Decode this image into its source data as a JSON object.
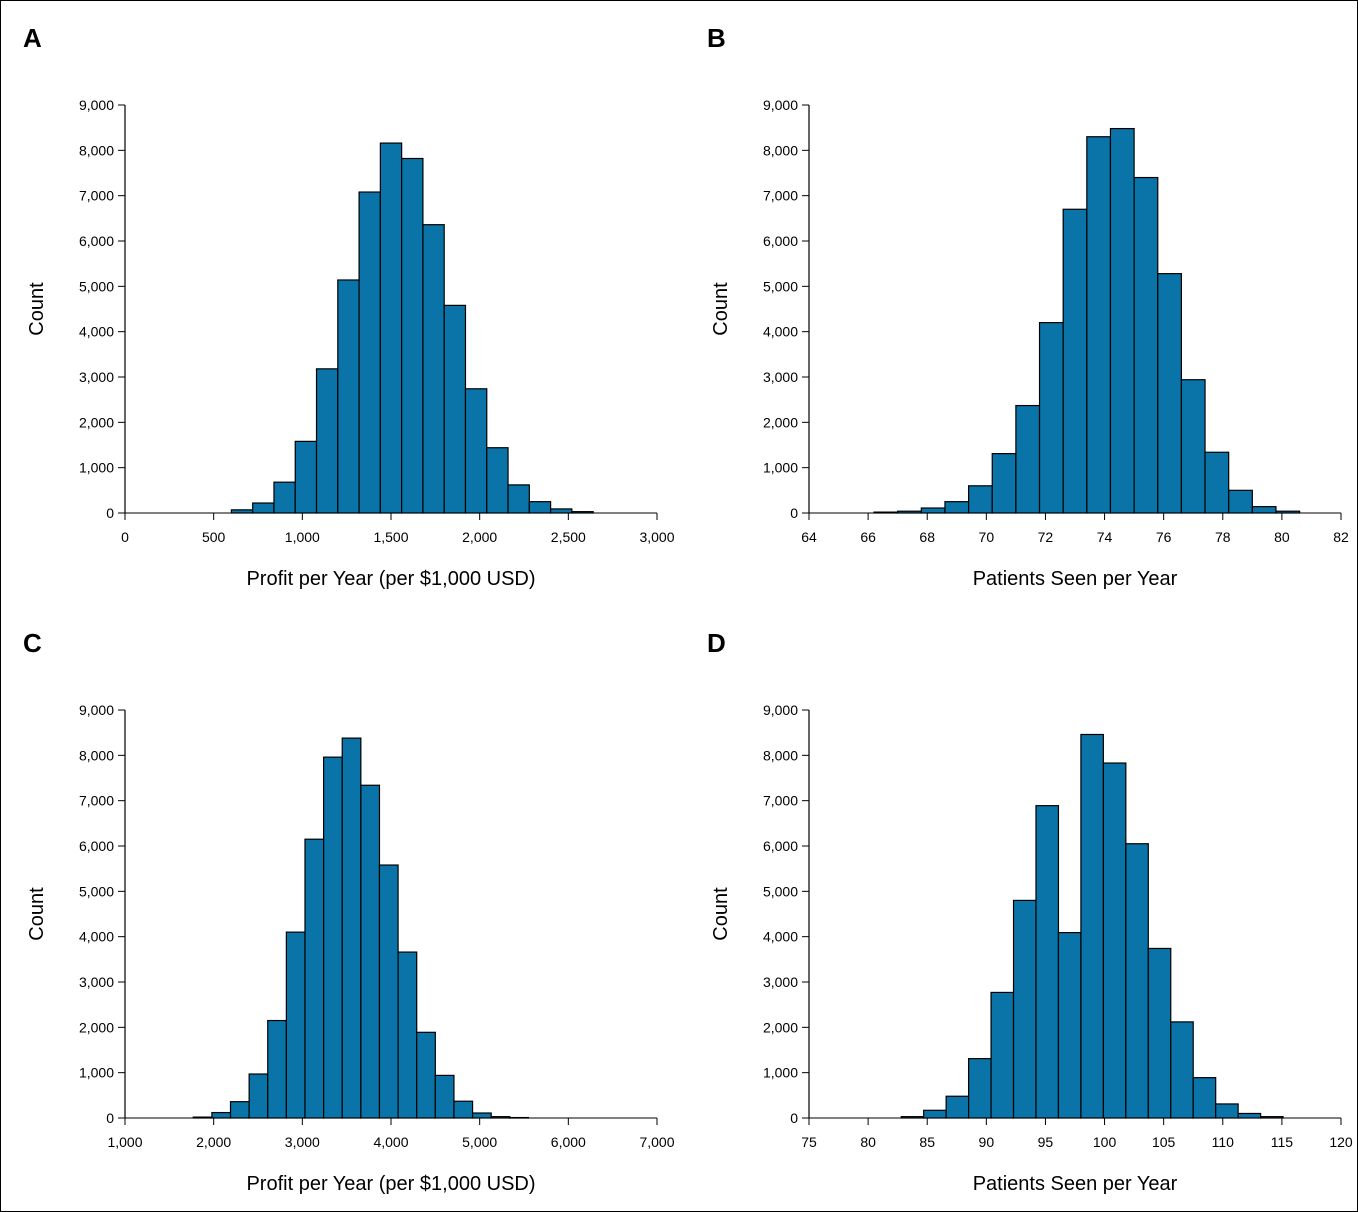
{
  "figure": {
    "panels": [
      "A",
      "B",
      "C",
      "D"
    ]
  },
  "colors": {
    "bar_fill": "#0a74a8",
    "bar_stroke": "#000000",
    "axis": "#000000"
  },
  "chart_data": [
    {
      "panel": "A",
      "type": "bar",
      "title": "",
      "xlabel": "Profit per Year (per $1,000 USD)",
      "ylabel": "Count",
      "xlim": [
        0,
        3000
      ],
      "ylim": [
        0,
        9000
      ],
      "xticks": [
        0,
        500,
        1000,
        1500,
        2000,
        2500,
        3000
      ],
      "xtick_labels": [
        "0",
        "500",
        "1,000",
        "1,500",
        "2,000",
        "2,500",
        "3,000"
      ],
      "yticks": [
        0,
        1000,
        2000,
        3000,
        4000,
        5000,
        6000,
        7000,
        8000,
        9000
      ],
      "ytick_labels": [
        "0",
        "1,000",
        "2,000",
        "3,000",
        "4,000",
        "5,000",
        "6,000",
        "7,000",
        "8,000",
        "9,000"
      ],
      "bin_edges": [
        600,
        720,
        840,
        960,
        1080,
        1200,
        1320,
        1440,
        1560,
        1680,
        1800,
        1920,
        2040,
        2160,
        2280,
        2400,
        2520,
        2640
      ],
      "values": [
        70,
        220,
        680,
        1580,
        3180,
        5140,
        7080,
        8160,
        7820,
        6360,
        4580,
        2740,
        1440,
        620,
        250,
        90,
        30
      ],
      "grid": false
    },
    {
      "panel": "B",
      "type": "bar",
      "title": "",
      "xlabel": "Patients Seen per Year",
      "ylabel": "Count",
      "xlim": [
        64,
        82
      ],
      "ylim": [
        0,
        9000
      ],
      "xticks": [
        64,
        66,
        68,
        70,
        72,
        74,
        76,
        78,
        80,
        82
      ],
      "xtick_labels": [
        "64",
        "66",
        "68",
        "70",
        "72",
        "74",
        "76",
        "78",
        "80",
        "82"
      ],
      "yticks": [
        0,
        1000,
        2000,
        3000,
        4000,
        5000,
        6000,
        7000,
        8000,
        9000
      ],
      "ytick_labels": [
        "0",
        "1,000",
        "2,000",
        "3,000",
        "4,000",
        "5,000",
        "6,000",
        "7,000",
        "8,000",
        "9,000"
      ],
      "bin_edges": [
        66.2,
        67.0,
        67.8,
        68.6,
        69.4,
        70.2,
        71.0,
        71.8,
        72.6,
        73.4,
        74.2,
        75.0,
        75.8,
        76.6,
        77.4,
        78.2,
        79.0,
        79.8,
        80.6
      ],
      "values": [
        20,
        40,
        110,
        250,
        600,
        1310,
        2370,
        4200,
        6700,
        8300,
        8480,
        7400,
        5280,
        2940,
        1340,
        500,
        140,
        40
      ],
      "grid": false
    },
    {
      "panel": "C",
      "type": "bar",
      "title": "",
      "xlabel": "Profit per Year (per $1,000 USD)",
      "ylabel": "Count",
      "xlim": [
        1000,
        7000
      ],
      "ylim": [
        0,
        9000
      ],
      "xticks": [
        1000,
        2000,
        3000,
        4000,
        5000,
        6000,
        7000
      ],
      "xtick_labels": [
        "1,000",
        "2,000",
        "3,000",
        "4,000",
        "5,000",
        "6,000",
        "7,000"
      ],
      "yticks": [
        0,
        1000,
        2000,
        3000,
        4000,
        5000,
        6000,
        7000,
        8000,
        9000
      ],
      "ytick_labels": [
        "0",
        "1,000",
        "2,000",
        "3,000",
        "4,000",
        "5,000",
        "6,000",
        "7,000",
        "8,000",
        "9,000"
      ],
      "bin_edges": [
        1770,
        1980,
        2190,
        2400,
        2610,
        2820,
        3030,
        3240,
        3450,
        3660,
        3870,
        4080,
        4290,
        4500,
        4710,
        4920,
        5130,
        5340,
        5550
      ],
      "values": [
        20,
        120,
        360,
        970,
        2150,
        4100,
        6150,
        7960,
        8380,
        7340,
        5580,
        3660,
        1890,
        940,
        370,
        110,
        30,
        10
      ],
      "grid": false
    },
    {
      "panel": "D",
      "type": "bar",
      "title": "",
      "xlabel": "Patients Seen per Year",
      "ylabel": "Count",
      "xlim": [
        75,
        120
      ],
      "ylim": [
        0,
        9000
      ],
      "xticks": [
        75,
        80,
        85,
        90,
        95,
        100,
        105,
        110,
        115,
        120
      ],
      "xtick_labels": [
        "75",
        "80",
        "85",
        "90",
        "95",
        "100",
        "105",
        "110",
        "115",
        "120"
      ],
      "yticks": [
        0,
        1000,
        2000,
        3000,
        4000,
        5000,
        6000,
        7000,
        8000,
        9000
      ],
      "ytick_labels": [
        "0",
        "1,000",
        "2,000",
        "3,000",
        "4,000",
        "5,000",
        "6,000",
        "7,000",
        "8,000",
        "9,000"
      ],
      "bin_edges": [
        82.8,
        84.7,
        86.6,
        88.5,
        90.4,
        92.3,
        94.2,
        96.1,
        98.0,
        99.9,
        101.8,
        103.7,
        105.6,
        107.5,
        109.4,
        111.3,
        113.2,
        115.1
      ],
      "values": [
        30,
        170,
        480,
        1310,
        2770,
        4800,
        6890,
        4090,
        8460,
        7830,
        6050,
        3740,
        2120,
        890,
        310,
        100,
        30
      ],
      "grid": false
    }
  ]
}
